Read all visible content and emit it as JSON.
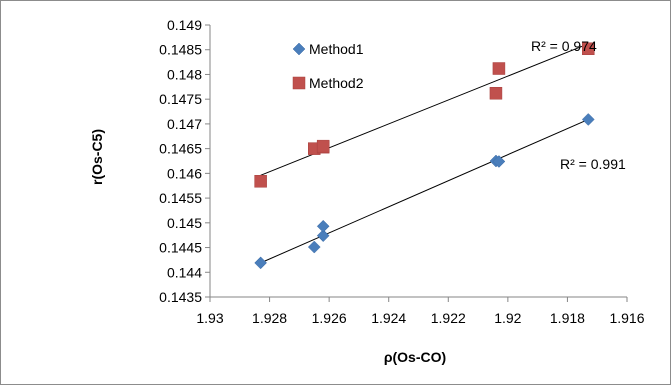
{
  "chart_data": {
    "type": "scatter",
    "title": "",
    "xlabel": "ρ(Os-CO)",
    "ylabel": "r(Os-C5)",
    "xlim": [
      1.93,
      1.916
    ],
    "x_reversed": true,
    "ylim": [
      0.1435,
      0.149
    ],
    "x_ticks": [
      "1.93",
      "1.928",
      "1.926",
      "1.924",
      "1.922",
      "1.92",
      "1.918",
      "1.916"
    ],
    "y_ticks": [
      "0.1435",
      "0.144",
      "0.1445",
      "0.145",
      "0.1455",
      "0.146",
      "0.1465",
      "0.147",
      "0.1475",
      "0.148",
      "0.1485",
      "0.149"
    ],
    "grid": false,
    "legend_position": "top-left",
    "series": [
      {
        "name": "Method1",
        "color": "#4a7ebb",
        "marker": "diamond",
        "points": [
          {
            "x": 1.9283,
            "y": 0.14419
          },
          {
            "x": 1.9265,
            "y": 0.14451
          },
          {
            "x": 1.9262,
            "y": 0.14474
          },
          {
            "x": 1.9262,
            "y": 0.14493
          },
          {
            "x": 1.9204,
            "y": 0.14625
          },
          {
            "x": 1.9203,
            "y": 0.14624
          },
          {
            "x": 1.9173,
            "y": 0.14709
          }
        ],
        "trendline": {
          "x": [
            1.9283,
            1.9173
          ],
          "y": [
            0.14419,
            0.14709
          ]
        },
        "r2_label": "R² = 0.991"
      },
      {
        "name": "Method2",
        "color": "#c0504d",
        "marker": "square",
        "points": [
          {
            "x": 1.9283,
            "y": 0.14584
          },
          {
            "x": 1.9265,
            "y": 0.1465
          },
          {
            "x": 1.9262,
            "y": 0.14653
          },
          {
            "x": 1.9262,
            "y": 0.14655
          },
          {
            "x": 1.9204,
            "y": 0.14762
          },
          {
            "x": 1.9203,
            "y": 0.14812
          },
          {
            "x": 1.9173,
            "y": 0.14852
          }
        ],
        "trendline": {
          "x": [
            1.9283,
            1.9173
          ],
          "y": [
            0.14596,
            0.14862
          ]
        },
        "r2_label": "R² = 0.974"
      }
    ]
  }
}
